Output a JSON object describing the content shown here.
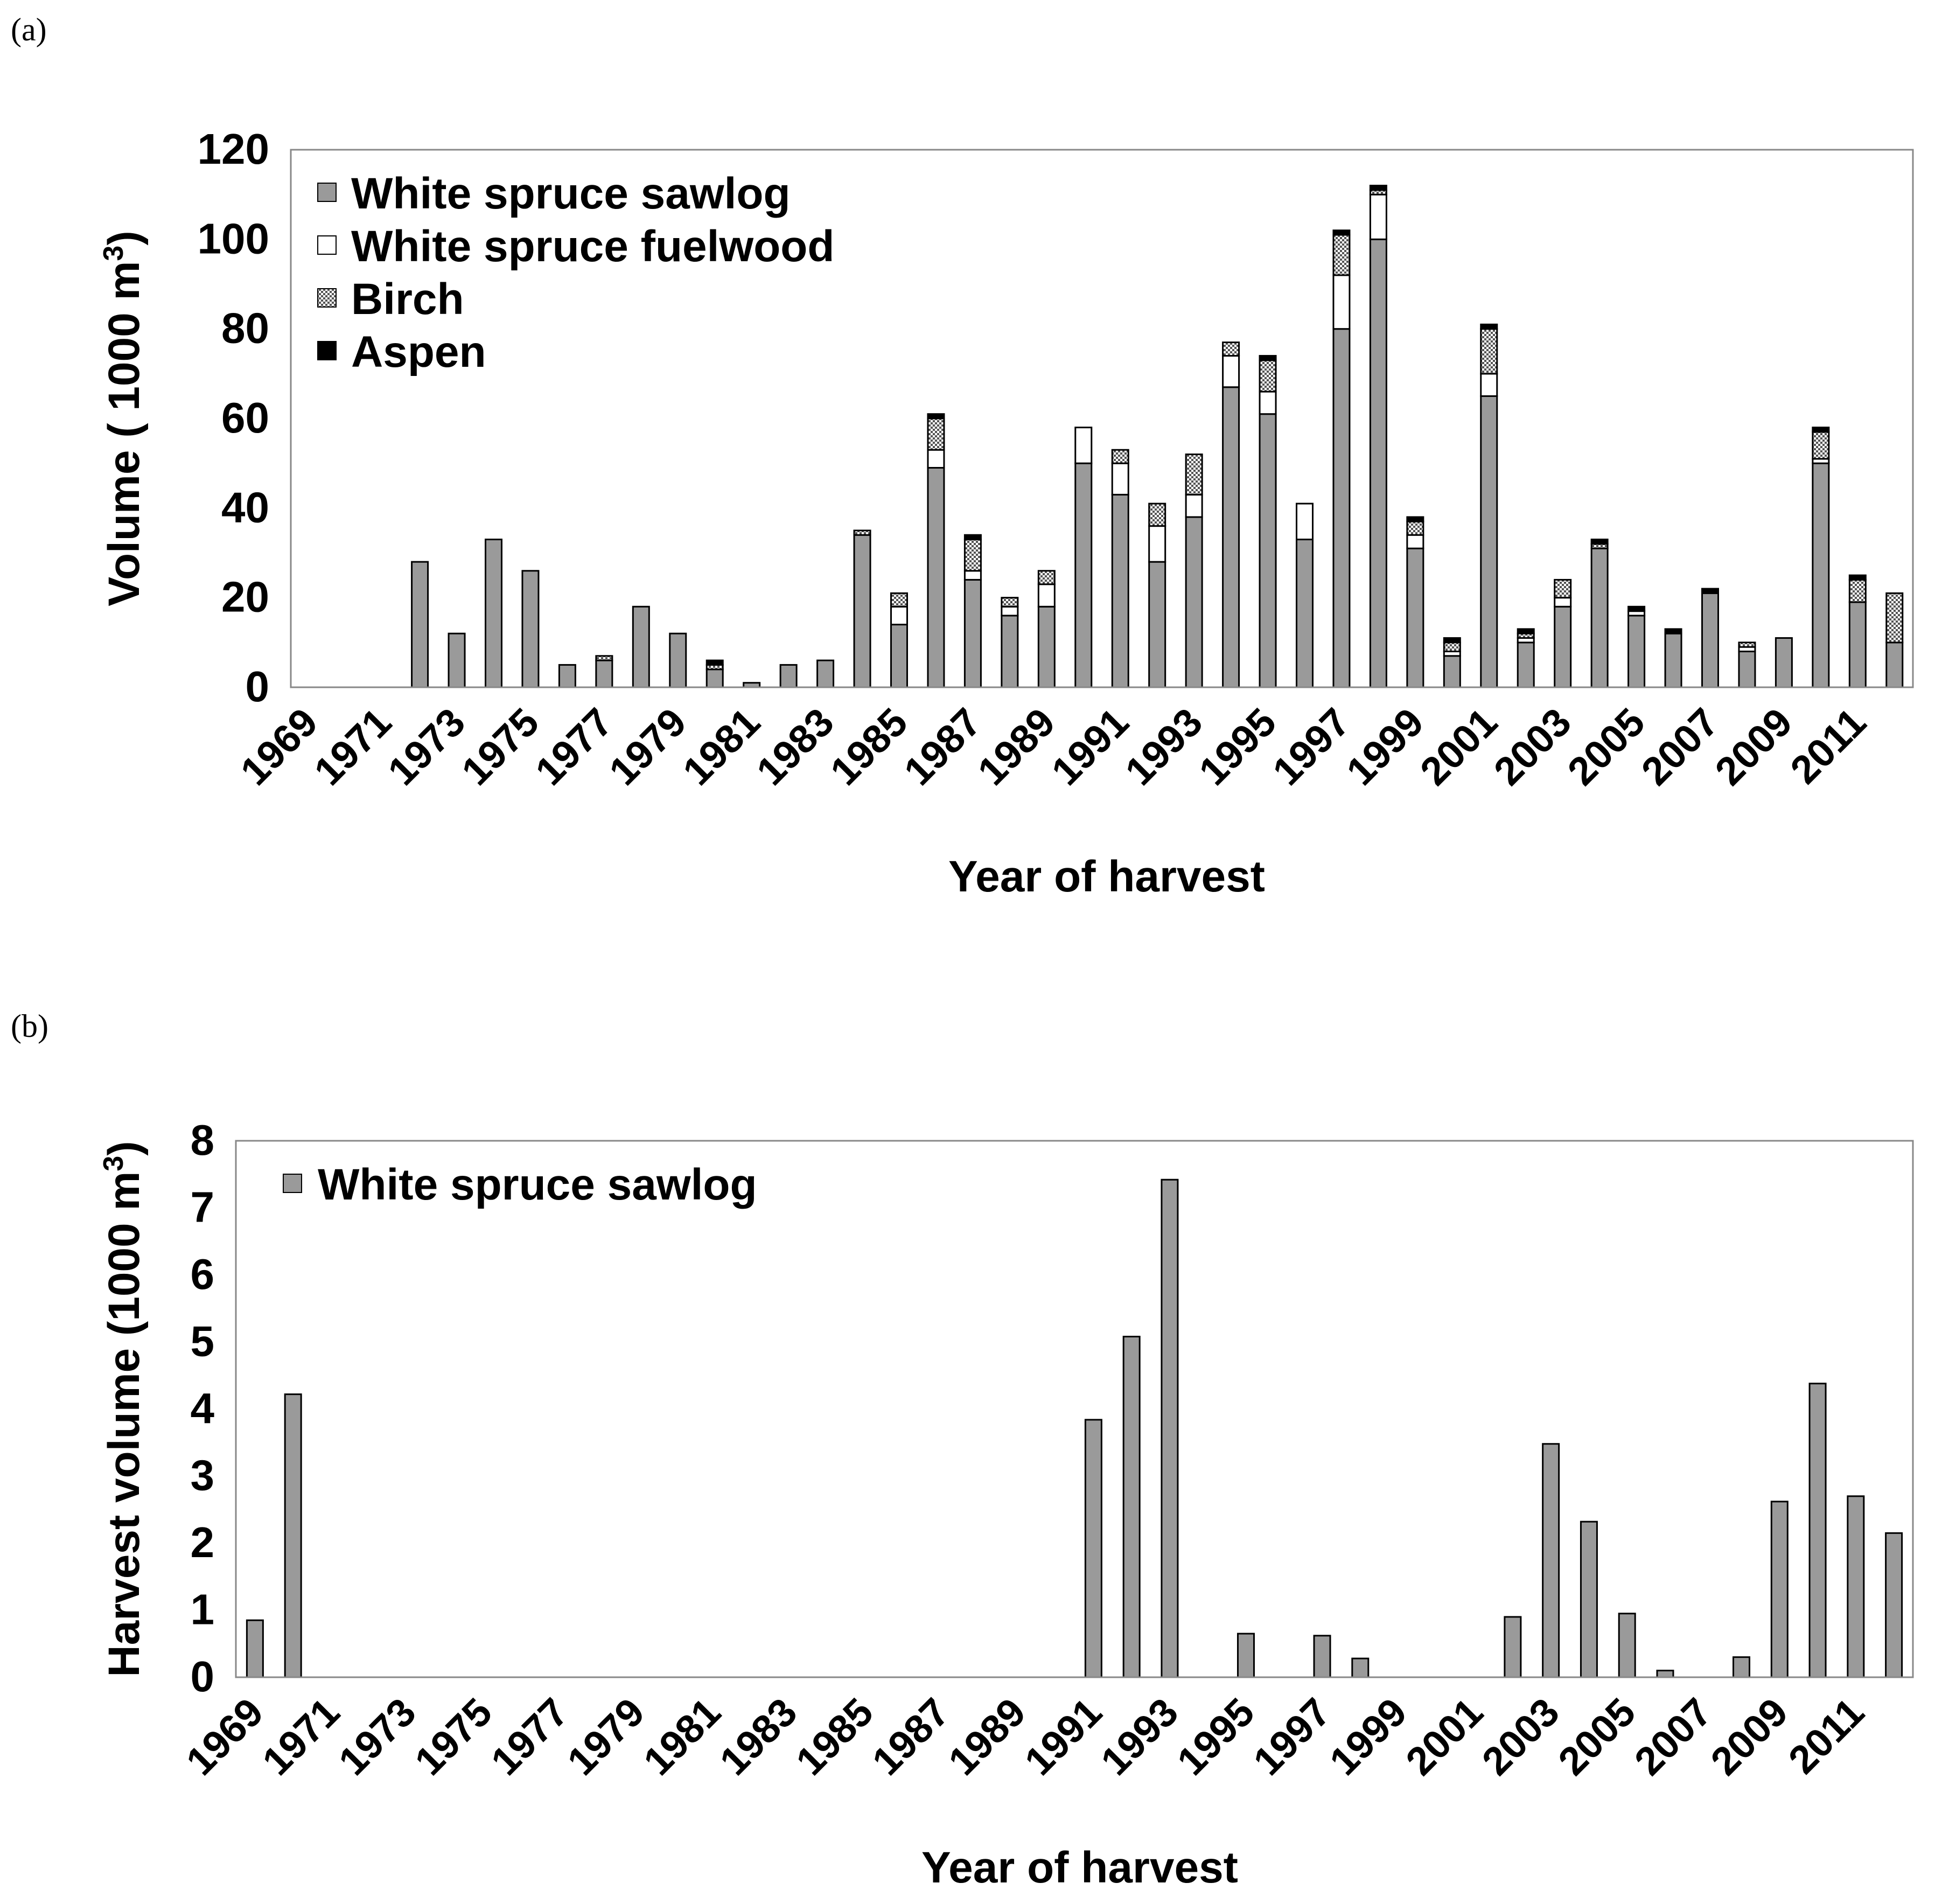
{
  "colors": {
    "sawlog": "#9a9a9a",
    "fuelwood": "#ffffff",
    "birch": "#8c8c8c",
    "aspen": "#000000"
  },
  "chart_data": [
    {
      "panel_label": "(a)",
      "type": "bar",
      "stacked": true,
      "xlabel": "Year of harvest",
      "ylabel_text": "Volume ( 1000 m",
      "ylabel_sup": "3",
      "ylabel_close": ")",
      "ylim": [
        0,
        120
      ],
      "yticks": [
        "0",
        "20",
        "40",
        "60",
        "80",
        "100",
        "120"
      ],
      "legend_position": "top-left",
      "x": [
        1969,
        1970,
        1971,
        1972,
        1973,
        1974,
        1975,
        1976,
        1977,
        1978,
        1979,
        1980,
        1981,
        1982,
        1983,
        1984,
        1985,
        1986,
        1987,
        1988,
        1989,
        1990,
        1991,
        1992,
        1993,
        1994,
        1995,
        1996,
        1997,
        1998,
        1999,
        2000,
        2001,
        2002,
        2003,
        2004,
        2005,
        2006,
        2007,
        2008,
        2009,
        2010,
        2011,
        2012
      ],
      "x_tick_labels": [
        "1969",
        "1971",
        "1973",
        "1975",
        "1977",
        "1979",
        "1981",
        "1983",
        "1985",
        "1987",
        "1989",
        "1991",
        "1993",
        "1995",
        "1997",
        "1999",
        "2001",
        "2003",
        "2005",
        "2007",
        "2009",
        "2011"
      ],
      "series": [
        {
          "name": "White spruce sawlog",
          "key": "sawlog",
          "values": [
            0,
            0,
            0,
            28,
            12,
            33,
            26,
            5,
            6,
            18,
            12,
            4,
            1,
            5,
            6,
            34,
            14,
            49,
            24,
            16,
            18,
            50,
            43,
            28,
            38,
            67,
            61,
            33,
            80,
            100,
            31,
            7,
            65,
            10,
            18,
            31,
            16,
            12,
            21,
            8,
            11,
            50,
            19,
            10
          ]
        },
        {
          "name": "White spruce fuelwood",
          "key": "fuelwood",
          "values": [
            0,
            0,
            0,
            0,
            0,
            0,
            0,
            0,
            0,
            0,
            0,
            0,
            0,
            0,
            0,
            0,
            4,
            4,
            2,
            2,
            5,
            8,
            7,
            8,
            5,
            7,
            5,
            8,
            12,
            10,
            3,
            1,
            5,
            1,
            2,
            0,
            1,
            0,
            0,
            1,
            0,
            1,
            0,
            0
          ]
        },
        {
          "name": "Birch",
          "key": "birch",
          "values": [
            0,
            0,
            0,
            0,
            0,
            0,
            0,
            0,
            1,
            0,
            0,
            1,
            0,
            0,
            0,
            1,
            3,
            7,
            7,
            2,
            3,
            0,
            3,
            5,
            9,
            3,
            7,
            0,
            9,
            1,
            3,
            2,
            10,
            1,
            4,
            1,
            0,
            0,
            0,
            1,
            0,
            6,
            5,
            11
          ]
        },
        {
          "name": "Aspen",
          "key": "aspen",
          "values": [
            0,
            0,
            0,
            0,
            0,
            0,
            0,
            0,
            0,
            0,
            0,
            1,
            0,
            0,
            0,
            0,
            0,
            1,
            1,
            0,
            0,
            0,
            0,
            0,
            0,
            0,
            1,
            0,
            1,
            1,
            1,
            1,
            1,
            1,
            0,
            1,
            1,
            1,
            1,
            0,
            0,
            1,
            1,
            0
          ]
        }
      ]
    },
    {
      "panel_label": "(b)",
      "type": "bar",
      "stacked": false,
      "xlabel": "Year of harvest",
      "ylabel_text": "Harvest volume (1000 m",
      "ylabel_sup": "3",
      "ylabel_close": ")",
      "ylim": [
        0,
        8
      ],
      "yticks": [
        "0",
        "1",
        "2",
        "3",
        "4",
        "5",
        "6",
        "7",
        "8"
      ],
      "legend_position": "top-left",
      "x": [
        1969,
        1970,
        1971,
        1972,
        1973,
        1974,
        1975,
        1976,
        1977,
        1978,
        1979,
        1980,
        1981,
        1982,
        1983,
        1984,
        1985,
        1986,
        1987,
        1988,
        1989,
        1990,
        1991,
        1992,
        1993,
        1994,
        1995,
        1996,
        1997,
        1998,
        1999,
        2000,
        2001,
        2002,
        2003,
        2004,
        2005,
        2006,
        2007,
        2008,
        2009,
        2010,
        2011,
        2012
      ],
      "x_tick_labels": [
        "1969",
        "1971",
        "1973",
        "1975",
        "1977",
        "1979",
        "1981",
        "1983",
        "1985",
        "1987",
        "1989",
        "1991",
        "1993",
        "1995",
        "1997",
        "1999",
        "2001",
        "2003",
        "2005",
        "2007",
        "2009",
        "2011"
      ],
      "series": [
        {
          "name": "White spruce sawlog",
          "key": "sawlog",
          "values": [
            0.85,
            4.22,
            0,
            0,
            0,
            0,
            0,
            0,
            0,
            0,
            0,
            0,
            0,
            0,
            0,
            0,
            0,
            0,
            0,
            0,
            0,
            0,
            3.84,
            5.08,
            7.42,
            0,
            0.65,
            0,
            0.62,
            0.28,
            0,
            0,
            0,
            0.9,
            3.48,
            2.32,
            0.95,
            0.1,
            0,
            0.3,
            2.62,
            4.38,
            2.7,
            2.15
          ]
        }
      ]
    }
  ]
}
